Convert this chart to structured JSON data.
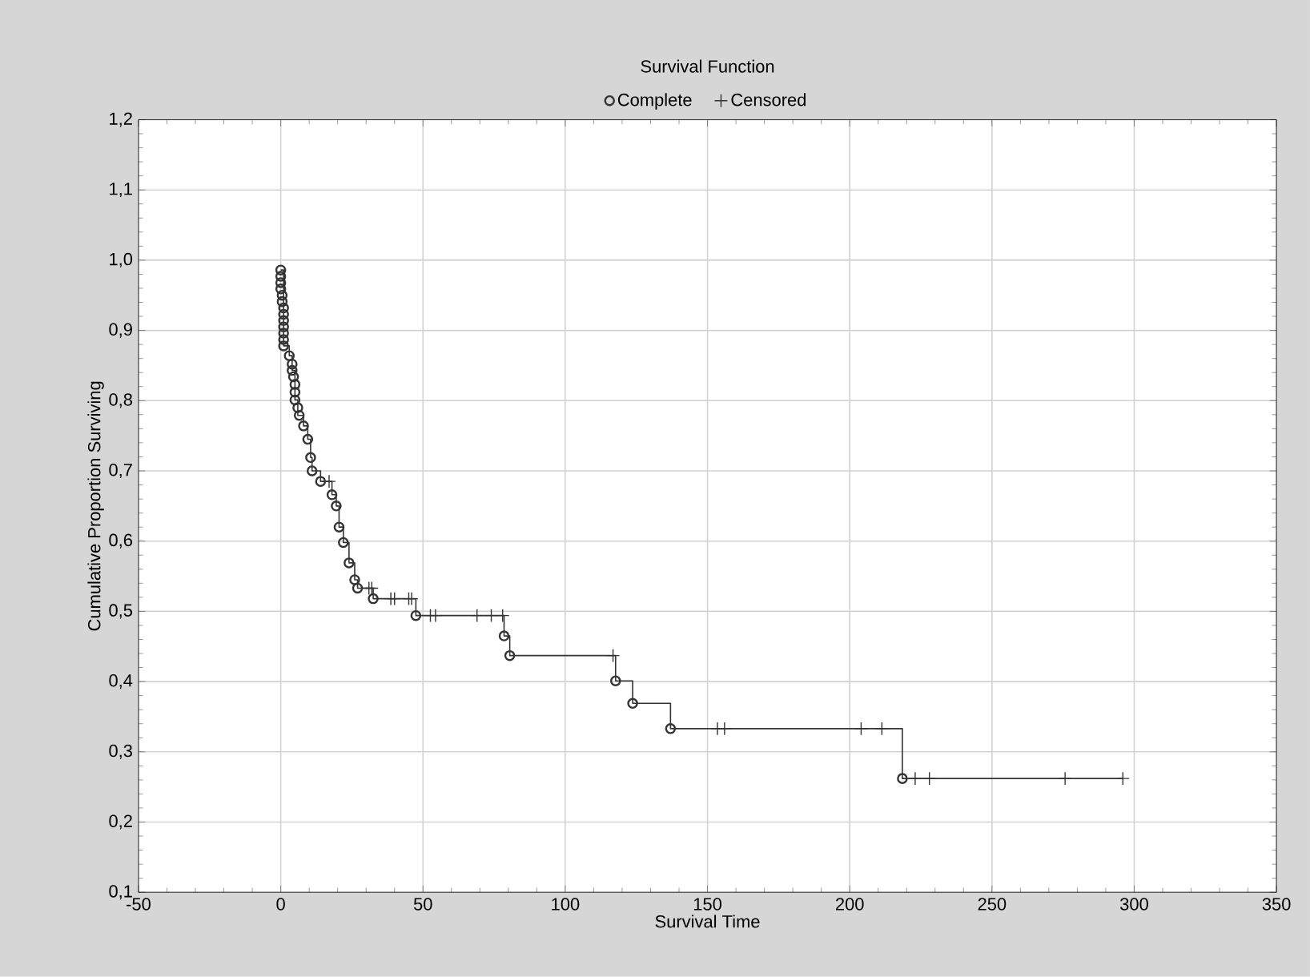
{
  "chart_data": {
    "type": "scatter",
    "title": "Survival Function",
    "xlabel": "Survival Time",
    "ylabel": "Cumulative Proportion Surviving",
    "xlim": [
      -50,
      350
    ],
    "xticks": [
      -50,
      0,
      50,
      100,
      150,
      200,
      250,
      300,
      350
    ],
    "ylim": [
      0.1,
      1.2
    ],
    "yticks": [
      {
        "value": 0.1,
        "label": "0,1"
      },
      {
        "value": 0.2,
        "label": "0,2"
      },
      {
        "value": 0.3,
        "label": "0,3"
      },
      {
        "value": 0.4,
        "label": "0,4"
      },
      {
        "value": 0.5,
        "label": "0,5"
      },
      {
        "value": 0.6,
        "label": "0,6"
      },
      {
        "value": 0.7,
        "label": "0,7"
      },
      {
        "value": 0.8,
        "label": "0,8"
      },
      {
        "value": 0.9,
        "label": "0,9"
      },
      {
        "value": 1.0,
        "label": "1,0"
      },
      {
        "value": 1.1,
        "label": "1,1"
      },
      {
        "value": 1.2,
        "label": "1,2"
      }
    ],
    "grid": true,
    "legend": "top",
    "series": [
      {
        "type": "step",
        "color": "#333333",
        "marker": "none",
        "x": [
          0,
          1,
          3,
          4,
          5,
          6,
          8,
          9.5,
          10.5,
          11,
          14,
          18,
          19.5,
          20.5,
          22,
          24,
          26,
          27,
          32.5,
          47.5,
          78.5,
          80.5,
          117.7,
          123.7,
          137,
          218.5,
          296
        ],
        "values": [
          0.986,
          0.878,
          0.864,
          0.843,
          0.801,
          0.779,
          0.764,
          0.745,
          0.719,
          0.7,
          0.685,
          0.666,
          0.65,
          0.62,
          0.598,
          0.569,
          0.545,
          0.533,
          0.518,
          0.494,
          0.465,
          0.437,
          0.401,
          0.369,
          0.333,
          0.262,
          0.262
        ]
      },
      {
        "name": "Complete",
        "color": "#333333",
        "marker": "circle",
        "x": [
          0,
          0,
          0,
          0,
          0.5,
          0.5,
          1,
          1,
          1,
          1,
          1,
          1,
          1,
          3,
          4,
          4,
          4.5,
          5,
          5,
          5,
          6,
          6.5,
          8,
          9.5,
          10.5,
          11,
          14,
          18,
          19.5,
          20.5,
          22,
          24,
          26,
          27,
          32.5,
          47.5,
          78.5,
          80.5,
          117.7,
          123.7,
          137,
          218.5
        ],
        "values": [
          0.986,
          0.977,
          0.968,
          0.959,
          0.95,
          0.941,
          0.932,
          0.923,
          0.914,
          0.905,
          0.896,
          0.887,
          0.878,
          0.864,
          0.852,
          0.843,
          0.834,
          0.823,
          0.812,
          0.801,
          0.79,
          0.779,
          0.764,
          0.745,
          0.719,
          0.7,
          0.685,
          0.666,
          0.65,
          0.62,
          0.598,
          0.569,
          0.545,
          0.533,
          0.518,
          0.494,
          0.465,
          0.437,
          0.401,
          0.369,
          0.333,
          0.262
        ]
      },
      {
        "name": "Censored",
        "color": "#333333",
        "marker": "cross",
        "x": [
          17,
          31,
          32,
          38.7,
          40,
          45,
          46,
          52.6,
          54.4,
          69,
          74,
          78,
          116.8,
          153.5,
          156,
          204,
          211.3,
          223,
          228,
          275.7,
          296
        ],
        "values": [
          0.685,
          0.533,
          0.533,
          0.518,
          0.518,
          0.518,
          0.518,
          0.494,
          0.494,
          0.494,
          0.494,
          0.494,
          0.437,
          0.333,
          0.333,
          0.333,
          0.333,
          0.262,
          0.262,
          0.262,
          0.262
        ]
      }
    ]
  }
}
